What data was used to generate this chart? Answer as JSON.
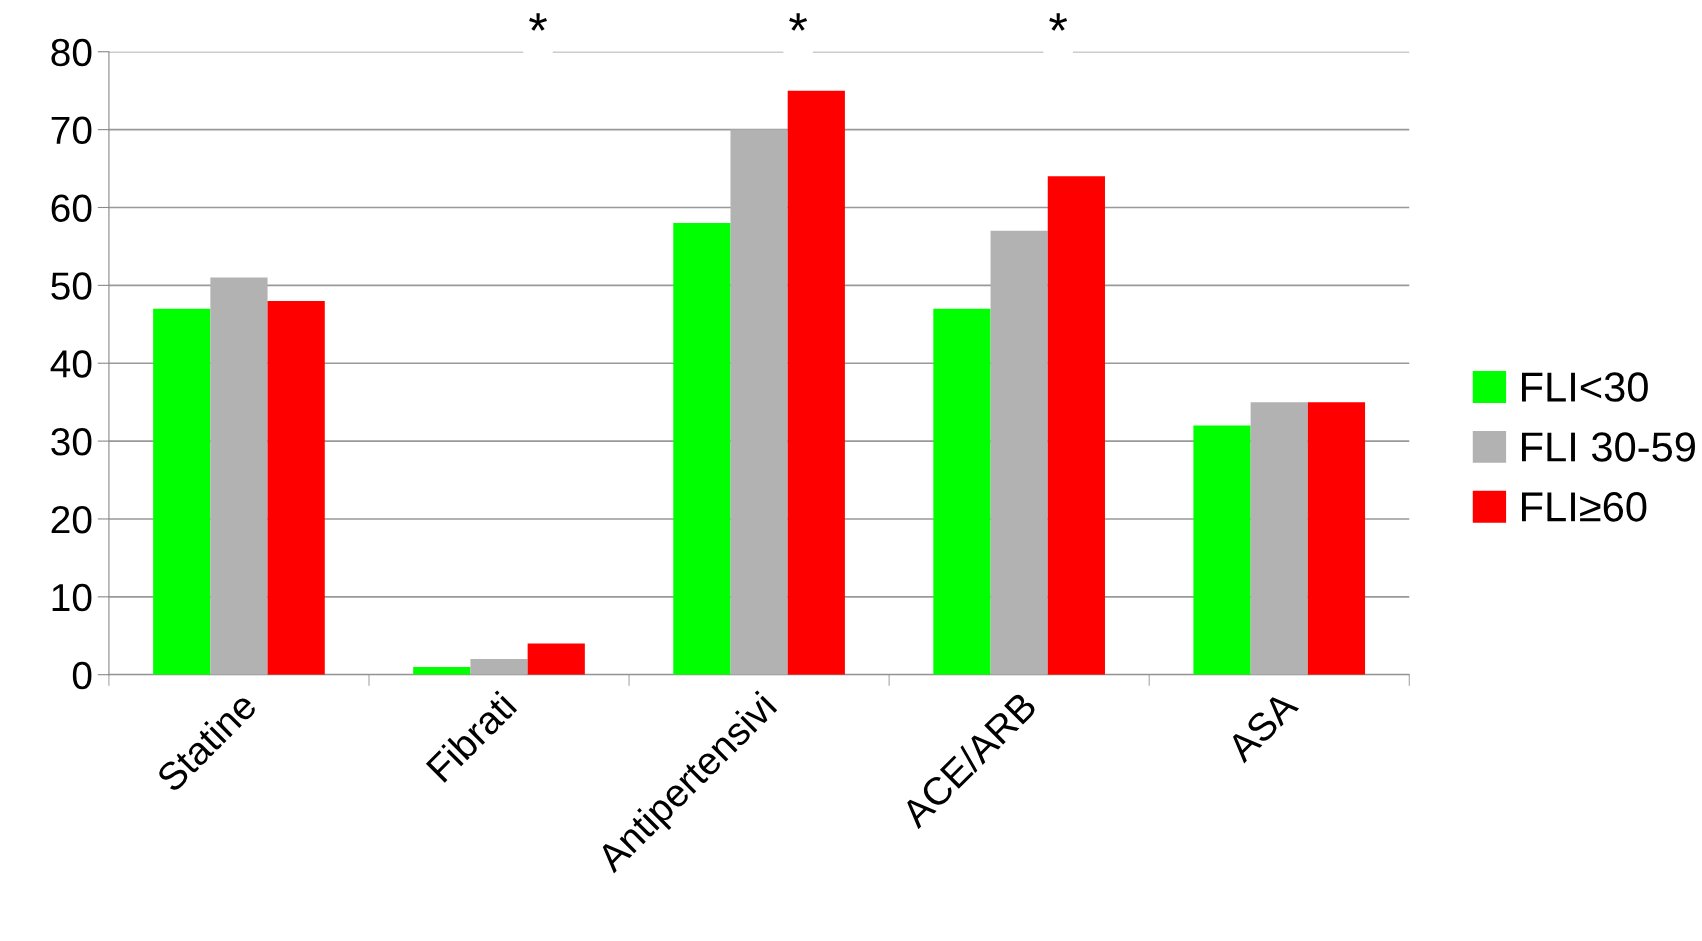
{
  "chart_data": {
    "type": "bar",
    "categories": [
      "Statine",
      "Fibrati",
      "Antipertensivi",
      "ACE/ARB",
      "ASA"
    ],
    "series": [
      {
        "name": "FLI<30",
        "color": "#00ff00",
        "values": [
          47,
          1,
          58,
          47,
          32
        ]
      },
      {
        "name": "FLI 30-59",
        "color": "#b2b2b2",
        "values": [
          51,
          2,
          70,
          57,
          35
        ]
      },
      {
        "name": "FLI≥60",
        "color": "#ff0000",
        "values": [
          48,
          4,
          75,
          64,
          35
        ]
      }
    ],
    "ylim": [
      0,
      80
    ],
    "yticks": [
      0,
      10,
      20,
      30,
      40,
      50,
      60,
      70,
      80
    ],
    "grid": "y",
    "legend": "right",
    "annotations": [
      "*",
      "*",
      "*"
    ]
  }
}
